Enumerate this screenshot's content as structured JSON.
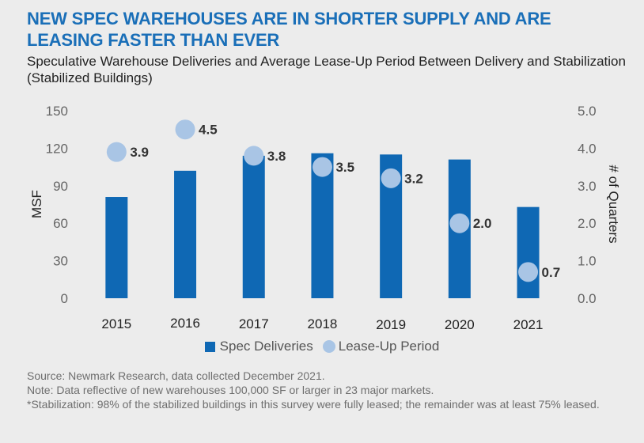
{
  "title": "NEW SPEC WAREHOUSES ARE IN SHORTER SUPPLY AND ARE LEASING FASTER THAN EVER",
  "subtitle": "Speculative Warehouse Deliveries and Average Lease-Up Period Between Delivery and Stabilization (Stabilized Buildings)",
  "colors": {
    "title": "#1a6fb8",
    "bar": "#0f68b4",
    "dot": "#a9c5e5",
    "background": "#ececec"
  },
  "chart_data": {
    "type": "bar",
    "categories": [
      "2015",
      "2016",
      "2017",
      "2018",
      "2019",
      "2020",
      "2021"
    ],
    "series": [
      {
        "name": "Spec Deliveries",
        "type": "bar",
        "axis": "left",
        "values": [
          81,
          102,
          114,
          116,
          115,
          111,
          73
        ]
      },
      {
        "name": "Lease-Up Period",
        "type": "scatter",
        "axis": "right",
        "values": [
          3.9,
          4.5,
          3.8,
          3.5,
          3.2,
          2.0,
          0.7
        ],
        "labels": [
          "3.9",
          "4.5",
          "3.8",
          "3.5",
          "3.2",
          "2.0",
          "0.7"
        ]
      }
    ],
    "ylabel": "MSF",
    "ylim": [
      0,
      150
    ],
    "yticks": [
      "0",
      "30",
      "60",
      "90",
      "120",
      "150"
    ],
    "y2label": "# of Quarters",
    "y2lim": [
      0,
      5
    ],
    "y2ticks": [
      "0.0",
      "1.0",
      "2.0",
      "3.0",
      "4.0",
      "5.0"
    ],
    "grid": false,
    "legend_position": "bottom"
  },
  "footnotes": [
    "Source: Newmark Research, data collected December 2021.",
    "Note: Data reflective of new warehouses 100,000 SF or larger in 23 major markets.",
    "*Stabilization: 98% of the stabilized buildings in this survey were fully leased; the remainder was at least 75% leased."
  ]
}
